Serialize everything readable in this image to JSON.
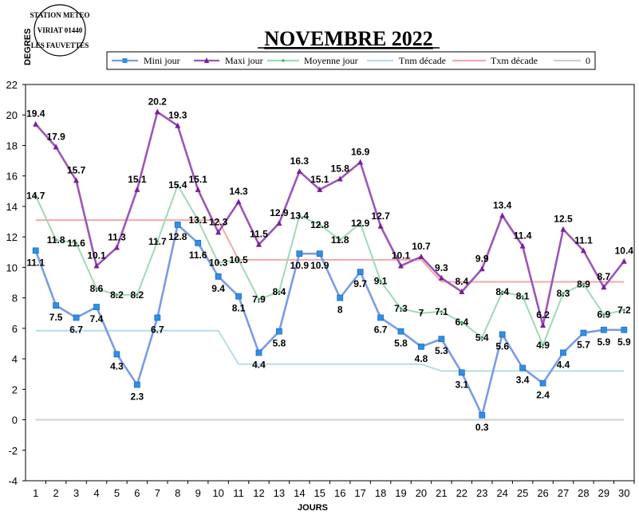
{
  "station": {
    "line1": "STATION METEO",
    "line2": "VIRIAT 01440",
    "line3": "LES FAUVETTES"
  },
  "chart_data": {
    "type": "line",
    "title": "NOVEMBRE 2022",
    "ylabel": "DEGRES",
    "xlabel": "JOURS",
    "ylim": [
      -4,
      22
    ],
    "ystep": 2,
    "x": [
      1,
      2,
      3,
      4,
      5,
      6,
      7,
      8,
      9,
      10,
      11,
      12,
      13,
      14,
      15,
      16,
      17,
      18,
      19,
      20,
      21,
      22,
      23,
      24,
      25,
      26,
      27,
      28,
      29,
      30
    ],
    "legend_position": "top",
    "series": [
      {
        "name": "Mini jour",
        "color": "#7b9be3",
        "marker": "square",
        "labelPos": "below",
        "values": [
          11.1,
          7.5,
          6.7,
          7.4,
          4.3,
          2.3,
          6.7,
          12.8,
          11.6,
          9.4,
          8.1,
          4.4,
          5.8,
          10.9,
          10.9,
          8,
          9.7,
          6.7,
          5.8,
          4.8,
          5.3,
          3.1,
          0.3,
          5.6,
          3.4,
          2.4,
          4.4,
          5.7,
          5.9,
          5.9
        ],
        "labels": [
          "11.1",
          "7.5",
          "6.7",
          "7.4",
          "4.3",
          "2.3",
          "6.7",
          "12.8",
          "11.6",
          "9.4",
          "8.1",
          "4.4",
          "5.8",
          "10.9",
          "10.9",
          "8",
          "9.7",
          "6.7",
          "5.8",
          "4.8",
          "5.3",
          "3.1",
          "0.3",
          "5.6",
          "3.4",
          "2.4",
          "4.4",
          "5.7",
          "5.9",
          "5.9"
        ]
      },
      {
        "name": "Maxi jour",
        "color": "#9b56b8",
        "marker": "triangle",
        "labelPos": "above",
        "values": [
          19.4,
          17.9,
          15.7,
          10.1,
          11.3,
          15.1,
          20.2,
          19.3,
          15.1,
          12.3,
          14.3,
          11.5,
          12.9,
          16.3,
          15.1,
          15.8,
          16.9,
          12.7,
          10.1,
          10.7,
          9.3,
          8.4,
          9.9,
          13.4,
          11.4,
          6.2,
          12.5,
          11.1,
          8.7,
          10.4
        ],
        "labels": [
          "19.4",
          "17.9",
          "15.7",
          "10.1",
          "11.3",
          "15.1",
          "20.2",
          "19.3",
          "15.1",
          "12.3",
          "14.3",
          "11.5",
          "12.9",
          "16.3",
          "15.1",
          "15.8",
          "16.9",
          "12.7",
          "10.1",
          "10.7",
          "9.3",
          "8.4",
          "9.9",
          "13.4",
          "11.4",
          "6.2",
          "12.5",
          "11.1",
          "8.7",
          "10.4"
        ]
      },
      {
        "name": "Moyenne jour",
        "color": "#9fd9b6",
        "marker": "dot",
        "labelPos": "mid",
        "values": [
          14.7,
          11.8,
          11.6,
          8.6,
          8.2,
          8.2,
          11.7,
          15.4,
          13.1,
          10.3,
          10.5,
          7.9,
          8.4,
          13.4,
          12.8,
          11.8,
          12.9,
          9.1,
          7.3,
          7,
          7.1,
          6.4,
          5.4,
          8.4,
          8.1,
          4.9,
          8.3,
          8.9,
          6.9,
          7.2
        ],
        "labels": [
          "14.7",
          "11.8",
          "11.6",
          "8.6",
          "8.2",
          "8.2",
          "11.7",
          "15.4",
          "13.1",
          "10.3",
          "10.5",
          "7.9",
          "8.4",
          "13.4",
          "12.8",
          "11.8",
          "12.9",
          "9.1",
          "7.3",
          "7",
          "7.1",
          "6.4",
          "5.4",
          "8.4",
          "8.1",
          "4.9",
          "8.3",
          "8.9",
          "6.9",
          "7.2"
        ]
      },
      {
        "name": "Tnm décade",
        "color": "#b8dcea",
        "marker": "none",
        "values": [
          5.85,
          5.85,
          5.85,
          5.85,
          5.85,
          5.85,
          5.85,
          5.85,
          5.85,
          5.85,
          3.65,
          3.65,
          3.65,
          3.65,
          3.65,
          3.65,
          3.65,
          3.65,
          3.65,
          3.65,
          3.2,
          3.2,
          3.2,
          3.2,
          3.2,
          3.2,
          3.2,
          3.2,
          3.2,
          3.2
        ]
      },
      {
        "name": "Txm décade",
        "color": "#f2aaa8",
        "marker": "none",
        "values": [
          13.1,
          13.1,
          13.1,
          13.1,
          13.1,
          13.1,
          13.1,
          13.1,
          13.1,
          13.1,
          10.5,
          10.5,
          10.5,
          10.5,
          10.5,
          10.5,
          10.5,
          10.5,
          10.5,
          10.5,
          9.05,
          9.05,
          9.05,
          9.05,
          9.05,
          9.05,
          9.05,
          9.05,
          9.05,
          9.05
        ]
      },
      {
        "name": "0",
        "color": "#cfcfcf",
        "marker": "none",
        "values": [
          0,
          0,
          0,
          0,
          0,
          0,
          0,
          0,
          0,
          0,
          0,
          0,
          0,
          0,
          0,
          0,
          0,
          0,
          0,
          0,
          0,
          0,
          0,
          0,
          0,
          0,
          0,
          0,
          0,
          0
        ]
      }
    ]
  }
}
